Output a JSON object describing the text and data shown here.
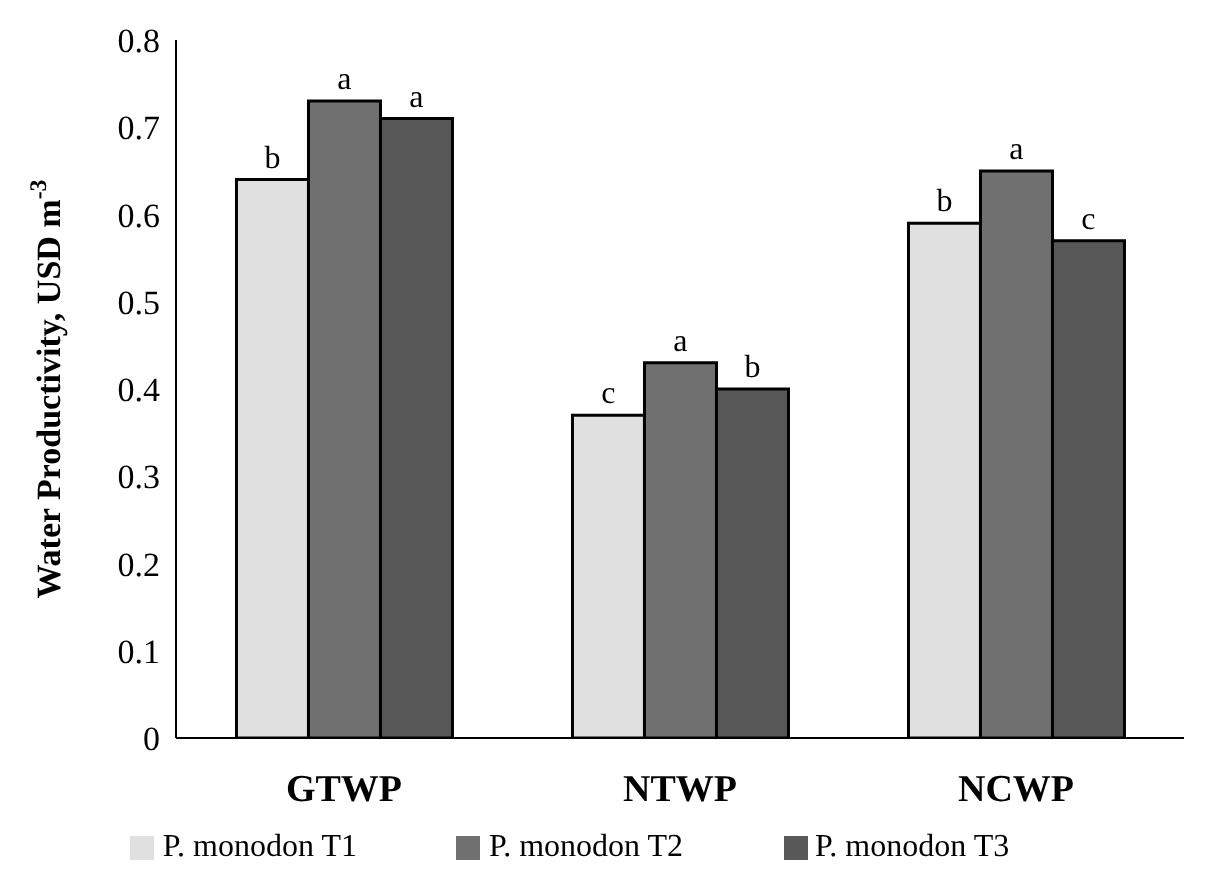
{
  "chart_data": {
    "type": "bar",
    "ylabel": "Water Productivity, USD m$^{-3}$",
    "categories": [
      "GTWP",
      "NTWP",
      "NCWP"
    ],
    "series": [
      {
        "name": "P. monodon T1",
        "color": "#e0e0e0",
        "values": [
          0.64,
          0.37,
          0.59
        ],
        "value_labels": [
          "b",
          "c",
          "b"
        ]
      },
      {
        "name": "P. monodon T2",
        "color": "#707070",
        "values": [
          0.73,
          0.43,
          0.65
        ],
        "value_labels": [
          "a",
          "a",
          "a"
        ]
      },
      {
        "name": "P. monodon T3",
        "color": "#585858",
        "values": [
          0.71,
          0.4,
          0.57
        ],
        "value_labels": [
          "a",
          "b",
          "c"
        ]
      }
    ],
    "ylim": [
      0,
      0.8
    ],
    "yticks": [
      0,
      0.1,
      0.2,
      0.3,
      0.4,
      0.5,
      0.6,
      0.7,
      0.8
    ],
    "grid": false,
    "legend": "bottom"
  }
}
